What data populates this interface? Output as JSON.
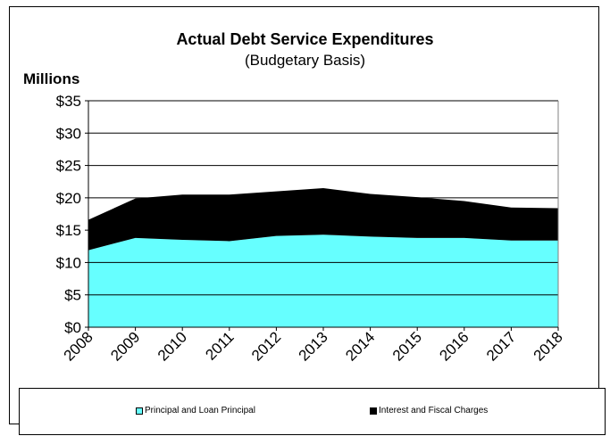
{
  "chart_data": {
    "type": "area",
    "stacked": true,
    "title": "Actual Debt Service Expenditures",
    "subtitle": "(Budgetary Basis)",
    "ylabel": "Millions",
    "xlabel": "",
    "categories": [
      "2008",
      "2009",
      "2010",
      "2011",
      "2012",
      "2013",
      "2014",
      "2015",
      "2016",
      "2017",
      "2018"
    ],
    "ylim": [
      0,
      35
    ],
    "yticks": [
      0,
      5,
      10,
      15,
      20,
      25,
      30,
      35
    ],
    "ytick_labels": [
      "$0",
      "$5",
      "$10",
      "$15",
      "$20",
      "$25",
      "$30",
      "$35"
    ],
    "grid": true,
    "legend_position": "bottom",
    "series": [
      {
        "name": "Principal and Loan Principal",
        "color": "#66FFFF",
        "values": [
          11.9,
          13.8,
          13.5,
          13.3,
          14.1,
          14.3,
          14.0,
          13.8,
          13.8,
          13.4,
          13.4
        ]
      },
      {
        "name": "Interest and Fiscal Charges",
        "color": "#000000",
        "values": [
          4.7,
          6.1,
          7.0,
          7.2,
          6.9,
          7.2,
          6.6,
          6.3,
          5.7,
          5.1,
          5.0
        ]
      }
    ]
  }
}
